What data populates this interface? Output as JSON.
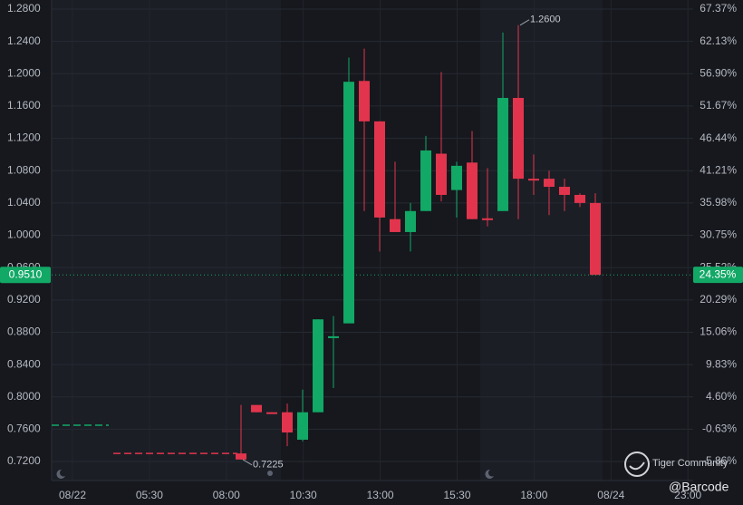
{
  "chart_data": {
    "type": "candlestick",
    "categories": [
      null,
      null,
      null,
      null,
      null,
      null,
      null,
      null,
      null,
      null,
      null,
      null,
      null,
      null,
      null,
      null,
      null,
      null,
      null,
      null,
      null,
      null,
      null,
      null
    ],
    "open": [
      0.73,
      0.79,
      0.781,
      0.781,
      0.747,
      0.781,
      0.873,
      0.891,
      1.191,
      1.141,
      1.02,
      1.004,
      1.03,
      1.101,
      1.056,
      1.09,
      1.021,
      1.03,
      1.17,
      1.07,
      1.07,
      1.06,
      1.05,
      1.04
    ],
    "high": [
      0.79,
      0.79,
      0.781,
      0.7917,
      0.809,
      0.896,
      0.9,
      1.22,
      1.231,
      1.141,
      1.091,
      1.04,
      1.123,
      1.202,
      1.091,
      1.129,
      1.083,
      1.251,
      1.26,
      1.1,
      1.08,
      1.07,
      1.052,
      1.052
    ],
    "low": [
      0.7225,
      0.781,
      0.78,
      0.739,
      0.745,
      0.781,
      0.811,
      0.891,
      1.03,
      0.98,
      1.004,
      0.98,
      1.03,
      1.042,
      1.022,
      1.02,
      1.011,
      1.03,
      1.02,
      1.05,
      1.025,
      1.03,
      1.035,
      0.951
    ],
    "close": [
      0.7225,
      0.781,
      0.78,
      0.756,
      0.781,
      0.896,
      0.875,
      1.19,
      1.141,
      1.022,
      1.004,
      1.03,
      1.105,
      1.05,
      1.086,
      1.02,
      1.02,
      1.17,
      1.07,
      1.069,
      1.06,
      1.05,
      1.04,
      0.951
    ],
    "up_color": "#12a866",
    "down_color": "#e2354d",
    "ylim": [
      0.6965,
      1.2912
    ],
    "yticks": [
      {
        "value": 0.72,
        "label": "0.7200"
      },
      {
        "value": 0.76,
        "label": "0.7600"
      },
      {
        "value": 0.8,
        "label": "0.8000"
      },
      {
        "value": 0.84,
        "label": "0.8400"
      },
      {
        "value": 0.88,
        "label": "0.8800"
      },
      {
        "value": 0.92,
        "label": "0.9200"
      },
      {
        "value": 0.96,
        "label": "0.9600"
      },
      {
        "value": 1.0,
        "label": "1.0000"
      },
      {
        "value": 1.04,
        "label": "1.0400"
      },
      {
        "value": 1.08,
        "label": "1.0800"
      },
      {
        "value": 1.12,
        "label": "1.1200"
      },
      {
        "value": 1.16,
        "label": "1.1600"
      },
      {
        "value": 1.2,
        "label": "1.2000"
      },
      {
        "value": 1.24,
        "label": "1.2400"
      },
      {
        "value": 1.28,
        "label": "1.2800"
      }
    ],
    "y2lim": [
      -8.93,
      68.83
    ],
    "y2ticks": [
      {
        "value": -5.86,
        "label": "-5.86%"
      },
      {
        "value": -0.63,
        "label": "-0.63%"
      },
      {
        "value": 4.6,
        "label": "4.60%"
      },
      {
        "value": 9.83,
        "label": "9.83%"
      },
      {
        "value": 15.06,
        "label": "15.06%"
      },
      {
        "value": 20.29,
        "label": "20.29%"
      },
      {
        "value": 25.52,
        "label": "25.52%"
      },
      {
        "value": 30.75,
        "label": "30.75%"
      },
      {
        "value": 35.98,
        "label": "35.98%"
      },
      {
        "value": 41.21,
        "label": "41.21%"
      },
      {
        "value": 46.44,
        "label": "46.44%"
      },
      {
        "value": 51.67,
        "label": "51.67%"
      },
      {
        "value": 56.9,
        "label": "56.90%"
      },
      {
        "value": 62.13,
        "label": "62.13%"
      },
      {
        "value": 67.37,
        "label": "67.37%"
      }
    ],
    "xticks": [
      "08/22",
      "05:30",
      "08:00",
      "10:30",
      "13:00",
      "15:30",
      "18:00",
      "08/24",
      "23:00"
    ],
    "grid": true,
    "last_price": {
      "value": 0.951,
      "label": "0.9510",
      "color": "#12a866"
    },
    "last_change": {
      "value": 24.35,
      "label": "24.35%"
    },
    "annotations": [
      {
        "value": 0.7225,
        "label": "0.7225"
      },
      {
        "value": 1.26,
        "label": "1.2600"
      }
    ],
    "reference_lines": [
      {
        "value": 0.765,
        "color": "#12a866"
      },
      {
        "value": 0.73,
        "color": "#e2354d"
      }
    ],
    "watermark": {
      "brand": "Tiger Community",
      "user": "@Barcode"
    }
  }
}
